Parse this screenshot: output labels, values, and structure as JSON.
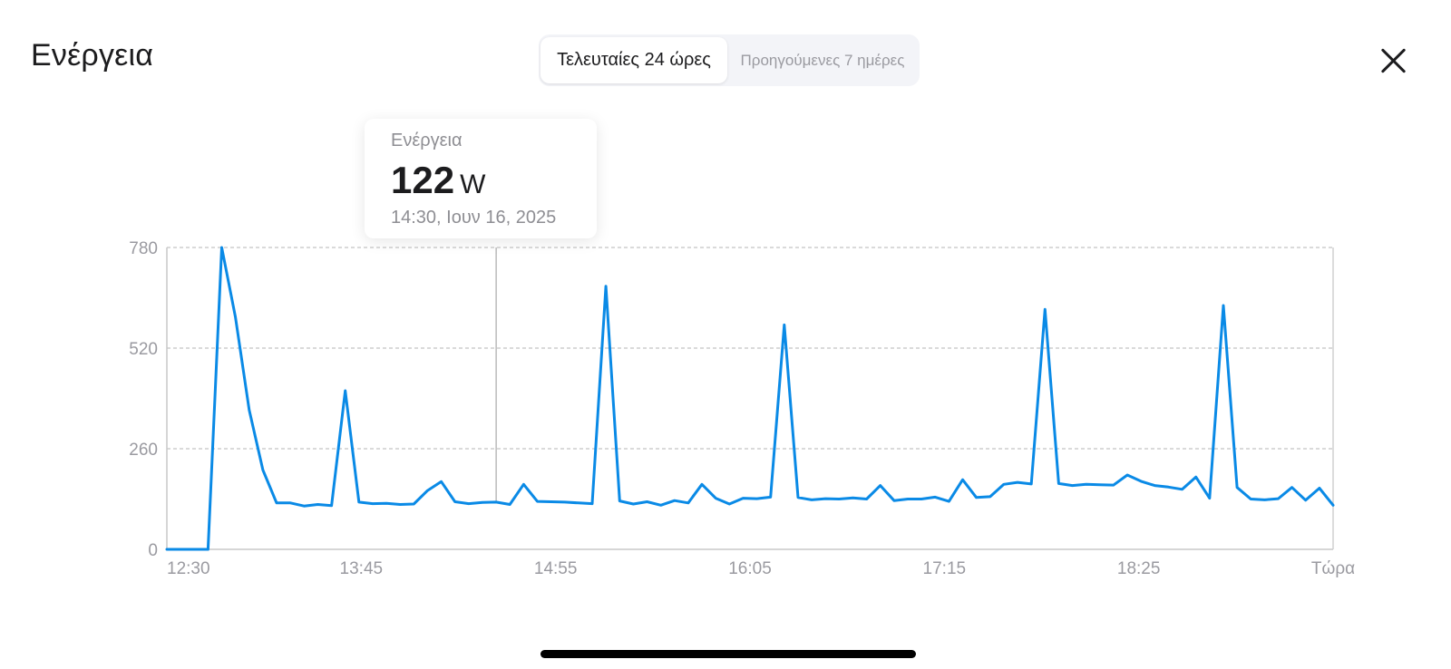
{
  "header": {
    "title": "Ενέργεια",
    "close_icon": "close-icon"
  },
  "range_selector": {
    "options": [
      "Τελευταίες 24 ώρες",
      "Προηγούμενες 7 ημέρες"
    ],
    "selected": "Τελευταίες 24 ώρες"
  },
  "tooltip": {
    "label": "Ενέργεια",
    "value": "122",
    "unit": "W",
    "timestamp": "14:30, Ιουν 16, 2025"
  },
  "colors": {
    "line": "#0a8ae6",
    "grid": "#b5b5b5",
    "text_muted": "#9a9aa0"
  },
  "chart_data": {
    "type": "line",
    "title": "",
    "xlabel": "",
    "ylabel": "",
    "ylim": [
      0,
      780
    ],
    "yticks": [
      0,
      260,
      520,
      780
    ],
    "xticks": [
      "12:30",
      "13:45",
      "14:55",
      "16:05",
      "17:15",
      "18:25",
      "Τώρα"
    ],
    "grid": true,
    "unit": "W",
    "highlighted_index": 24,
    "series": [
      {
        "values": [
          0,
          0,
          0,
          0,
          780,
          600,
          360,
          205,
          120,
          120,
          112,
          116,
          113,
          410,
          122,
          118,
          119,
          116,
          117,
          152,
          175,
          123,
          118,
          121,
          122,
          116,
          168,
          124,
          123,
          122,
          120,
          118,
          680,
          125,
          117,
          123,
          114,
          126,
          120,
          168,
          132,
          117,
          132,
          131,
          135,
          580,
          134,
          128,
          131,
          130,
          133,
          130,
          165,
          126,
          130,
          130,
          135,
          124,
          180,
          134,
          136,
          168,
          173,
          169,
          620,
          170,
          165,
          168,
          167,
          166,
          192,
          176,
          165,
          161,
          155,
          187,
          132,
          630,
          160,
          130,
          128,
          131,
          160,
          127,
          158,
          114
        ]
      }
    ]
  }
}
